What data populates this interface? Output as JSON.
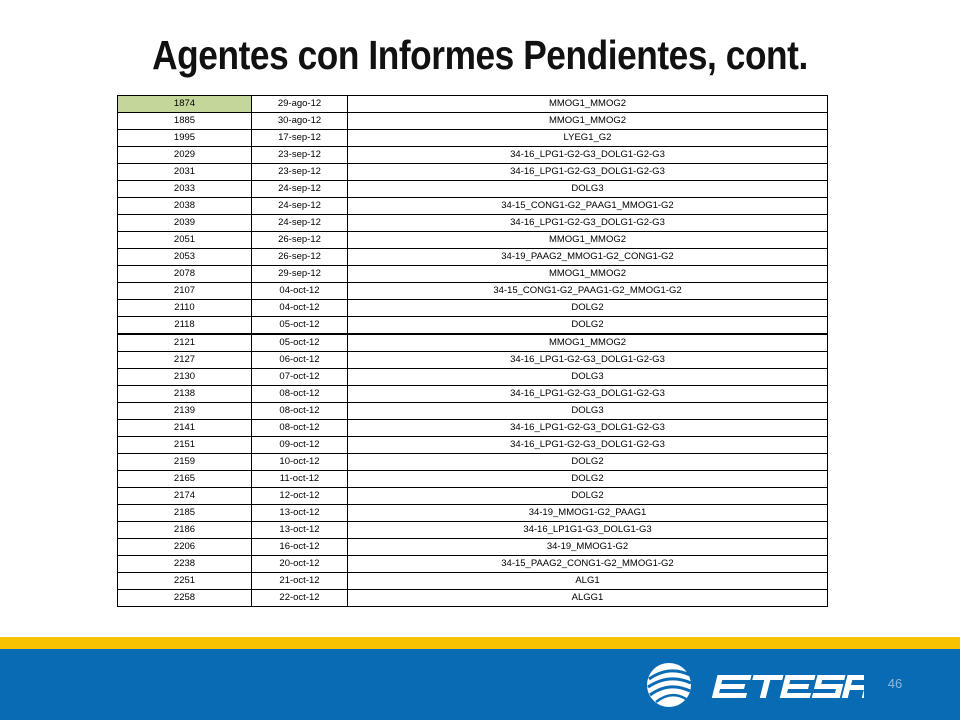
{
  "slide": {
    "title": "Agentes con Informes Pendientes, cont.",
    "page_number": "46",
    "logo_text": "ETESA"
  },
  "colors": {
    "highlight_cell": "#c4d79b",
    "footer_blue": "#0a6bb5",
    "footer_yellow": "#f7c300"
  },
  "table": {
    "rows": [
      {
        "id": "1874",
        "date": "29-ago-12",
        "code": "MMOG1_MMOG2",
        "highlighted": true
      },
      {
        "id": "1885",
        "date": "30-ago-12",
        "code": "MMOG1_MMOG2"
      },
      {
        "id": "1995",
        "date": "17-sep-12",
        "code": "LYEG1_G2"
      },
      {
        "id": "2029",
        "date": "23-sep-12",
        "code": "34-16_LPG1-G2-G3_DOLG1-G2-G3"
      },
      {
        "id": "2031",
        "date": "23-sep-12",
        "code": "34-16_LPG1-G2-G3_DOLG1-G2-G3"
      },
      {
        "id": "2033",
        "date": "24-sep-12",
        "code": "DOLG3"
      },
      {
        "id": "2038",
        "date": "24-sep-12",
        "code": "34-15_CONG1-G2_PAAG1_MMOG1-G2"
      },
      {
        "id": "2039",
        "date": "24-sep-12",
        "code": "34-16_LPG1-G2-G3_DOLG1-G2-G3"
      },
      {
        "id": "2051",
        "date": "26-sep-12",
        "code": "MMOG1_MMOG2"
      },
      {
        "id": "2053",
        "date": "26-sep-12",
        "code": "34-19_PAAG2_MMOG1-G2_CONG1-G2"
      },
      {
        "id": "2078",
        "date": "29-sep-12",
        "code": "MMOG1_MMOG2"
      },
      {
        "id": "2107",
        "date": "04-oct-12",
        "code": "34-15_CONG1-G2_PAAG1-G2_MMOG1-G2"
      },
      {
        "id": "2110",
        "date": "04-oct-12",
        "code": "DOLG2"
      },
      {
        "id": "2118",
        "date": "05-oct-12",
        "code": "DOLG2",
        "thick": true
      },
      {
        "id": "2121",
        "date": "05-oct-12",
        "code": "MMOG1_MMOG2"
      },
      {
        "id": "2127",
        "date": "06-oct-12",
        "code": "34-16_LPG1-G2-G3_DOLG1-G2-G3"
      },
      {
        "id": "2130",
        "date": "07-oct-12",
        "code": "DOLG3"
      },
      {
        "id": "2138",
        "date": "08-oct-12",
        "code": "34-16_LPG1-G2-G3_DOLG1-G2-G3"
      },
      {
        "id": "2139",
        "date": "08-oct-12",
        "code": "DOLG3"
      },
      {
        "id": "2141",
        "date": "08-oct-12",
        "code": "34-16_LPG1-G2-G3_DOLG1-G2-G3"
      },
      {
        "id": "2151",
        "date": "09-oct-12",
        "code": "34-16_LPG1-G2-G3_DOLG1-G2-G3"
      },
      {
        "id": "2159",
        "date": "10-oct-12",
        "code": "DOLG2"
      },
      {
        "id": "2165",
        "date": "11-oct-12",
        "code": "DOLG2"
      },
      {
        "id": "2174",
        "date": "12-oct-12",
        "code": "DOLG2"
      },
      {
        "id": "2185",
        "date": "13-oct-12",
        "code": "34-19_MMOG1-G2_PAAG1"
      },
      {
        "id": "2186",
        "date": "13-oct-12",
        "code": "34-16_LP1G1-G3_DOLG1-G3"
      },
      {
        "id": "2206",
        "date": "16-oct-12",
        "code": "34-19_MMOG1-G2"
      },
      {
        "id": "2238",
        "date": "20-oct-12",
        "code": "34-15_PAAG2_CONG1-G2_MMOG1-G2"
      },
      {
        "id": "2251",
        "date": "21-oct-12",
        "code": "ALG1"
      },
      {
        "id": "2258",
        "date": "22-oct-12",
        "code": "ALGG1"
      }
    ]
  }
}
